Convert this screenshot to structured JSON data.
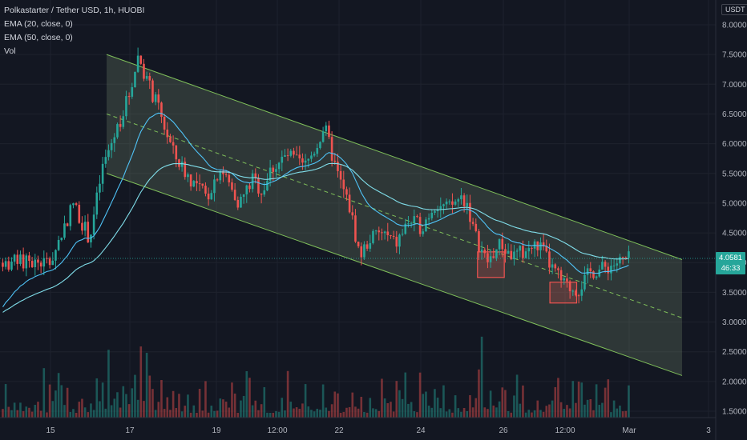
{
  "legend": {
    "symbol": "Polkastarter / Tether USD, 1h, HUOBI",
    "ema20": "EMA (20, close, 0)",
    "ema50": "EMA (50, close, 0)",
    "vol": "Vol"
  },
  "price_axis": {
    "unit": "USDT"
  },
  "last_price": {
    "value": "4.0581",
    "countdown": "46:33"
  },
  "colors": {
    "background": "#131722",
    "up": "#26a69a",
    "down": "#ef5350",
    "channel_line": "#7fbf5a",
    "ema_fast": "#4fc3f7",
    "ema_slow": "#80deea"
  },
  "chart_data": {
    "type": "candlestick",
    "x_ticks": [
      "15",
      "17",
      "19",
      "12:00",
      "22",
      "24",
      "26",
      "12:00",
      "Mar",
      "3"
    ],
    "y_ticks": [
      "8.0000",
      "7.5000",
      "7.0000",
      "6.5000",
      "6.0000",
      "5.5000",
      "5.0000",
      "4.5000",
      "4.0000",
      "3.5000",
      "3.0000",
      "2.5000",
      "2.0000",
      "1.5000"
    ],
    "ylim": [
      1.4,
      8.2
    ],
    "price_path": [
      [
        0,
        4.0
      ],
      [
        0.07,
        5.0
      ],
      [
        0.12,
        4.4
      ],
      [
        0.16,
        5.6
      ],
      [
        0.2,
        6.2
      ],
      [
        0.24,
        6.8
      ],
      [
        0.27,
        7.5
      ],
      [
        0.3,
        7.0
      ],
      [
        0.33,
        6.6
      ],
      [
        0.38,
        5.8
      ],
      [
        0.43,
        5.4
      ],
      [
        0.48,
        5.1
      ],
      [
        0.52,
        5.6
      ],
      [
        0.55,
        5.3
      ],
      [
        0.58,
        5.0
      ],
      [
        0.62,
        5.4
      ],
      [
        0.65,
        5.2
      ],
      [
        0.68,
        5.6
      ],
      [
        0.73,
        5.8
      ],
      [
        0.78,
        5.6
      ],
      [
        0.82,
        6.0
      ],
      [
        0.84,
        6.3
      ],
      [
        0.88,
        5.5
      ],
      [
        0.92,
        4.9
      ],
      [
        0.95,
        4.1
      ],
      [
        0.98,
        4.4
      ],
      [
        1.02,
        4.5
      ],
      [
        1.06,
        4.3
      ],
      [
        1.1,
        4.7
      ],
      [
        1.14,
        4.6
      ],
      [
        1.18,
        5.0
      ],
      [
        1.22,
        4.9
      ],
      [
        1.26,
        5.1
      ],
      [
        1.28,
        5.0
      ],
      [
        1.3,
        4.5
      ],
      [
        1.34,
        4.0
      ],
      [
        1.38,
        4.3
      ],
      [
        1.42,
        4.1
      ],
      [
        1.46,
        4.2
      ],
      [
        1.5,
        4.3
      ],
      [
        1.54,
        3.9
      ],
      [
        1.58,
        3.6
      ],
      [
        1.62,
        3.55
      ],
      [
        1.66,
        3.85
      ],
      [
        1.7,
        3.9
      ],
      [
        1.74,
        4.0
      ],
      [
        1.78,
        4.06
      ]
    ],
    "channel": {
      "upper": [
        [
          1.0,
          7.5
        ],
        [
          8.0,
          4.05
        ]
      ],
      "lower": [
        [
          1.0,
          5.5
        ],
        [
          8.0,
          2.1
        ]
      ],
      "mid": [
        [
          1.0,
          6.5
        ],
        [
          8.0,
          3.07
        ]
      ]
    },
    "highlight_boxes": [
      {
        "x": [
          5.9,
          6.27
        ],
        "y": [
          3.75,
          4.18
        ]
      },
      {
        "x": [
          6.9,
          7.27
        ],
        "y": [
          3.32,
          3.67
        ]
      }
    ]
  }
}
